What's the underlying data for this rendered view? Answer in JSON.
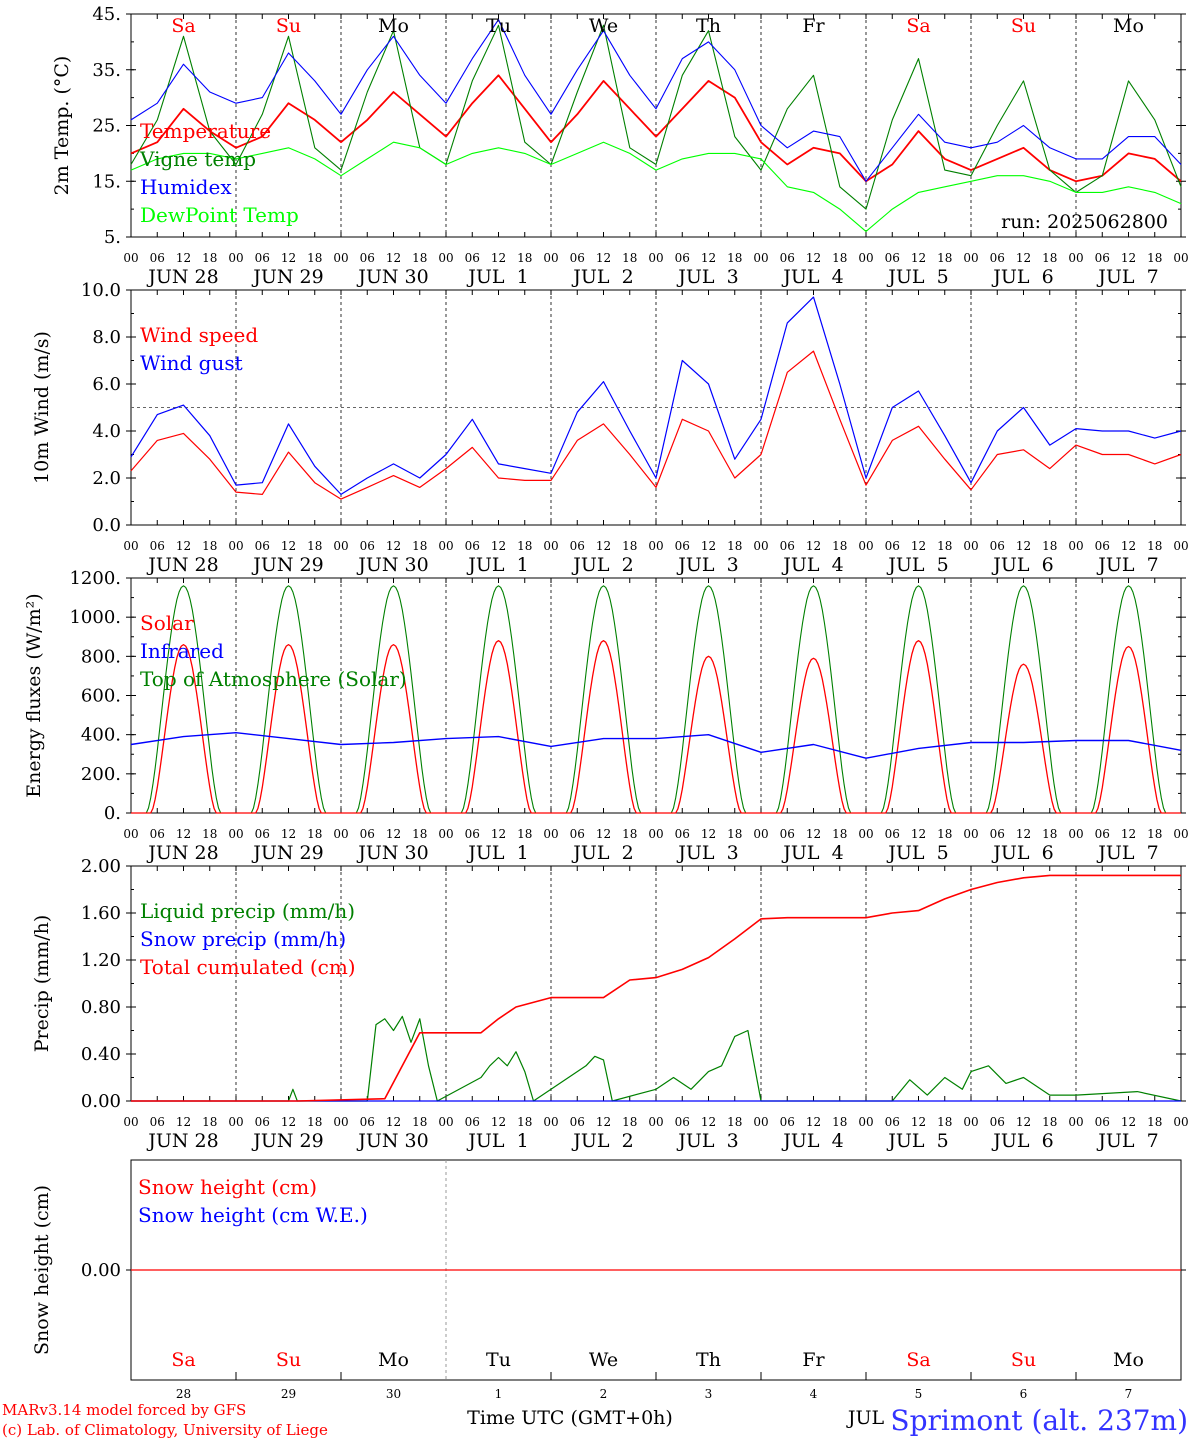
{
  "title_station": "Sprimont (alt. 237m)",
  "credits": {
    "line1": "MARv3.14 model forced by GFS",
    "line2": "(c) Lab. of Climatology, University of Liege"
  },
  "x_axis_label": "Time UTC (GMT+0h)",
  "x_axis_overlap_text": "JUL",
  "hour_ticks": [
    "00",
    "06",
    "12",
    "18"
  ],
  "hour_tick_end": "00",
  "days": [
    {
      "date": "JUN 28",
      "weekday": "Sa",
      "daynum": "28",
      "weekend": true
    },
    {
      "date": "JUN 29",
      "weekday": "Su",
      "daynum": "29",
      "weekend": true
    },
    {
      "date": "JUN 30",
      "weekday": "Mo",
      "daynum": "30",
      "weekend": false
    },
    {
      "date": "JUL  1",
      "weekday": "Tu",
      "daynum": "1",
      "weekend": false
    },
    {
      "date": "JUL  2",
      "weekday": "We",
      "daynum": "2",
      "weekend": false
    },
    {
      "date": "JUL  3",
      "weekday": "Th",
      "daynum": "3",
      "weekend": false
    },
    {
      "date": "JUL  4",
      "weekday": "Fr",
      "daynum": "4",
      "weekend": false
    },
    {
      "date": "JUL  5",
      "weekday": "Sa",
      "daynum": "5",
      "weekend": true
    },
    {
      "date": "JUL  6",
      "weekday": "Su",
      "daynum": "6",
      "weekend": true
    },
    {
      "date": "JUL  7",
      "weekday": "Mo",
      "daynum": "7",
      "weekend": false
    }
  ],
  "colors": {
    "red": "#ff0000",
    "blue": "#0000ff",
    "green": "#008000",
    "lightgreen": "#00ff00",
    "black": "#000000",
    "grid": "#000000"
  },
  "chart_data": [
    {
      "type": "line",
      "ylabel": "2m Temp. (°C)",
      "ylim": [
        5,
        45
      ],
      "yticks": [
        "5.",
        "15.",
        "25.",
        "35.",
        "45."
      ],
      "yticks_values": [
        5,
        15,
        25,
        35,
        45
      ],
      "annotation": "run: 2025062800",
      "x_unit": "hours since JUN 28 00 UTC",
      "series": [
        {
          "name": "Temperature",
          "color": "#ff0000",
          "x": [
            0,
            6,
            12,
            18,
            24,
            30,
            36,
            42,
            48,
            54,
            60,
            66,
            72,
            78,
            84,
            90,
            96,
            102,
            108,
            114,
            120,
            126,
            132,
            138,
            144,
            150,
            156,
            162,
            168,
            174,
            180,
            186,
            192,
            198,
            204,
            210,
            216,
            222,
            228,
            234,
            240
          ],
          "y": [
            20,
            22,
            28,
            24,
            21,
            23,
            29,
            26,
            22,
            26,
            31,
            27,
            23,
            29,
            34,
            28,
            22,
            27,
            33,
            28,
            23,
            28,
            33,
            30,
            22,
            18,
            21,
            20,
            15,
            18,
            24,
            19,
            17,
            19,
            21,
            17,
            15,
            16,
            20,
            19,
            15
          ]
        },
        {
          "name": "Vigne temp",
          "color": "#008000",
          "x": [
            0,
            6,
            12,
            18,
            24,
            30,
            36,
            42,
            48,
            54,
            60,
            66,
            72,
            78,
            84,
            90,
            96,
            102,
            108,
            114,
            120,
            126,
            132,
            138,
            144,
            150,
            156,
            162,
            168,
            174,
            180,
            186,
            192,
            198,
            204,
            210,
            216,
            222,
            228,
            234,
            240
          ],
          "y": [
            18,
            26,
            41,
            24,
            18,
            27,
            41,
            21,
            17,
            31,
            42,
            21,
            18,
            33,
            43,
            22,
            18,
            31,
            43,
            21,
            18,
            34,
            42,
            23,
            17,
            28,
            34,
            14,
            10,
            26,
            37,
            17,
            16,
            25,
            33,
            17,
            13,
            16,
            33,
            26,
            14
          ]
        },
        {
          "name": "Humidex",
          "color": "#0000ff",
          "x": [
            0,
            6,
            12,
            18,
            24,
            30,
            36,
            42,
            48,
            54,
            60,
            66,
            72,
            78,
            84,
            90,
            96,
            102,
            108,
            114,
            120,
            126,
            132,
            138,
            144,
            150,
            156,
            162,
            168,
            174,
            180,
            186,
            192,
            198,
            204,
            210,
            216,
            222,
            228,
            234,
            240
          ],
          "y": [
            26,
            29,
            36,
            31,
            29,
            30,
            38,
            33,
            27,
            35,
            41,
            34,
            29,
            37,
            44,
            34,
            27,
            35,
            42,
            34,
            28,
            37,
            40,
            35,
            25,
            21,
            24,
            23,
            15,
            21,
            27,
            22,
            21,
            22,
            25,
            21,
            19,
            19,
            23,
            23,
            18
          ]
        },
        {
          "name": "DewPoint Temp",
          "color": "#00ff00",
          "x": [
            0,
            6,
            12,
            18,
            24,
            30,
            36,
            42,
            48,
            54,
            60,
            66,
            72,
            78,
            84,
            90,
            96,
            102,
            108,
            114,
            120,
            126,
            132,
            138,
            144,
            150,
            156,
            162,
            168,
            174,
            180,
            186,
            192,
            198,
            204,
            210,
            216,
            222,
            228,
            234,
            240
          ],
          "y": [
            17,
            19,
            20,
            20,
            19,
            20,
            21,
            19,
            16,
            19,
            22,
            21,
            18,
            20,
            21,
            20,
            18,
            20,
            22,
            20,
            17,
            19,
            20,
            20,
            19,
            14,
            13,
            10,
            6,
            10,
            13,
            14,
            15,
            16,
            16,
            15,
            13,
            13,
            14,
            13,
            11
          ]
        }
      ]
    },
    {
      "type": "line",
      "ylabel": "10m Wind (m/s)",
      "ylim": [
        0,
        10
      ],
      "yticks": [
        "0.0",
        "2.0",
        "4.0",
        "6.0",
        "8.0",
        "10.0"
      ],
      "yticks_values": [
        0,
        2,
        4,
        6,
        8,
        10
      ],
      "reference_line": 5,
      "x_unit": "hours since JUN 28 00 UTC",
      "series": [
        {
          "name": "Wind speed",
          "color": "#ff0000",
          "x": [
            0,
            6,
            12,
            18,
            24,
            30,
            36,
            42,
            48,
            54,
            60,
            66,
            72,
            78,
            84,
            90,
            96,
            102,
            108,
            114,
            120,
            126,
            132,
            138,
            144,
            150,
            156,
            162,
            168,
            174,
            180,
            186,
            192,
            198,
            204,
            210,
            216,
            222,
            228,
            234,
            240
          ],
          "y": [
            2.3,
            3.6,
            3.9,
            2.8,
            1.4,
            1.3,
            3.1,
            1.8,
            1.1,
            1.6,
            2.1,
            1.6,
            2.4,
            3.3,
            2.0,
            1.9,
            1.9,
            3.6,
            4.3,
            3.0,
            1.6,
            4.5,
            4.0,
            2.0,
            3.0,
            6.5,
            7.4,
            4.5,
            1.7,
            3.6,
            4.2,
            2.8,
            1.5,
            3.0,
            3.2,
            2.4,
            3.4,
            3.0,
            3.0,
            2.6,
            3.0
          ]
        },
        {
          "name": "Wind gust",
          "color": "#0000ff",
          "x": [
            0,
            6,
            12,
            18,
            24,
            30,
            36,
            42,
            48,
            54,
            60,
            66,
            72,
            78,
            84,
            90,
            96,
            102,
            108,
            114,
            120,
            126,
            132,
            138,
            144,
            150,
            156,
            162,
            168,
            174,
            180,
            186,
            192,
            198,
            204,
            210,
            216,
            222,
            228,
            234,
            240
          ],
          "y": [
            2.9,
            4.7,
            5.1,
            3.8,
            1.7,
            1.8,
            4.3,
            2.5,
            1.3,
            2.0,
            2.6,
            2.0,
            3.0,
            4.5,
            2.6,
            2.4,
            2.2,
            4.8,
            6.1,
            4.0,
            2.0,
            7.0,
            6.0,
            2.8,
            4.5,
            8.6,
            9.7,
            6.0,
            2.0,
            5.0,
            5.7,
            3.8,
            1.8,
            4.0,
            5.0,
            3.4,
            4.1,
            4.0,
            4.0,
            3.7,
            4.0
          ]
        }
      ]
    },
    {
      "type": "line",
      "ylabel": "Energy fluxes (W/m²)",
      "ylim": [
        0,
        1200
      ],
      "yticks": [
        "0.",
        "200.",
        "400.",
        "600.",
        "800.",
        "1000.",
        "1200."
      ],
      "yticks_values": [
        0,
        200,
        400,
        600,
        800,
        1000,
        1200
      ],
      "x_unit": "hours since JUN 28 00 UTC",
      "series": [
        {
          "name": "Solar",
          "color": "#ff0000",
          "daily_peak": [
            860,
            860,
            860,
            880,
            880,
            800,
            790,
            880,
            760,
            850
          ]
        },
        {
          "name": "Infrared",
          "color": "#0000ff",
          "x": [
            0,
            12,
            24,
            36,
            48,
            60,
            72,
            84,
            96,
            108,
            120,
            132,
            144,
            156,
            168,
            180,
            192,
            204,
            216,
            228,
            240
          ],
          "y": [
            350,
            390,
            410,
            380,
            350,
            360,
            380,
            390,
            340,
            380,
            380,
            400,
            310,
            350,
            280,
            330,
            360,
            360,
            370,
            370,
            320
          ]
        },
        {
          "name": "Top of Atmosphere (Solar)",
          "color": "#008000",
          "daily_peak": [
            1160,
            1160,
            1160,
            1160,
            1160,
            1160,
            1160,
            1160,
            1160,
            1160
          ]
        }
      ]
    },
    {
      "type": "line",
      "ylabel": "Precip (mm/h)",
      "ylim": [
        0,
        2
      ],
      "yticks": [
        "0.00",
        "0.40",
        "0.80",
        "1.20",
        "1.60",
        "2.00"
      ],
      "yticks_values": [
        0,
        0.4,
        0.8,
        1.2,
        1.6,
        2.0
      ],
      "x_unit": "hours since JUN 28 00 UTC",
      "series": [
        {
          "name": "Liquid precip (mm/h)",
          "color": "#008000",
          "x": [
            0,
            36,
            37,
            38,
            48,
            54,
            56,
            58,
            60,
            62,
            64,
            66,
            68,
            70,
            80,
            82,
            84,
            86,
            88,
            90,
            92,
            104,
            106,
            108,
            110,
            120,
            124,
            128,
            132,
            135,
            138,
            141,
            144,
            168,
            174,
            178,
            182,
            186,
            190,
            192,
            196,
            200,
            204,
            210,
            216,
            230,
            240
          ],
          "y": [
            0,
            0,
            0.1,
            0,
            0,
            0,
            0.65,
            0.7,
            0.6,
            0.72,
            0.5,
            0.7,
            0.3,
            0,
            0.2,
            0.3,
            0.37,
            0.3,
            0.42,
            0.25,
            0,
            0.3,
            0.38,
            0.35,
            0,
            0.1,
            0.2,
            0.1,
            0.25,
            0.3,
            0.55,
            0.6,
            0,
            0,
            0,
            0.18,
            0.05,
            0.2,
            0.1,
            0.25,
            0.3,
            0.15,
            0.2,
            0.05,
            0.05,
            0.08,
            0
          ]
        },
        {
          "name": "Snow precip (mm/h)",
          "color": "#0000ff",
          "x": [
            0,
            240
          ],
          "y": [
            0,
            0
          ]
        },
        {
          "name": "Total cumulated (cm)",
          "color": "#ff0000",
          "x": [
            0,
            38,
            58,
            66,
            80,
            84,
            88,
            96,
            108,
            114,
            120,
            126,
            132,
            138,
            144,
            150,
            168,
            174,
            180,
            186,
            192,
            198,
            204,
            210,
            240
          ],
          "y": [
            0,
            0,
            0.02,
            0.58,
            0.58,
            0.7,
            0.8,
            0.88,
            0.88,
            1.03,
            1.05,
            1.12,
            1.22,
            1.38,
            1.55,
            1.56,
            1.56,
            1.6,
            1.62,
            1.72,
            1.8,
            1.86,
            1.9,
            1.92,
            1.92
          ]
        }
      ]
    },
    {
      "type": "line",
      "ylabel": "Snow height (cm)",
      "yticks": [
        "0.00"
      ],
      "yticks_values": [
        0
      ],
      "x_unit": "hours since JUN 28 00 UTC",
      "series": [
        {
          "name": "Snow height (cm)",
          "color": "#ff0000",
          "x": [
            0,
            240
          ],
          "y": [
            0,
            0
          ]
        },
        {
          "name": "Snow height (cm W.E.)",
          "color": "#0000ff",
          "x": [
            0,
            240
          ],
          "y": [
            0,
            0
          ]
        }
      ]
    }
  ]
}
